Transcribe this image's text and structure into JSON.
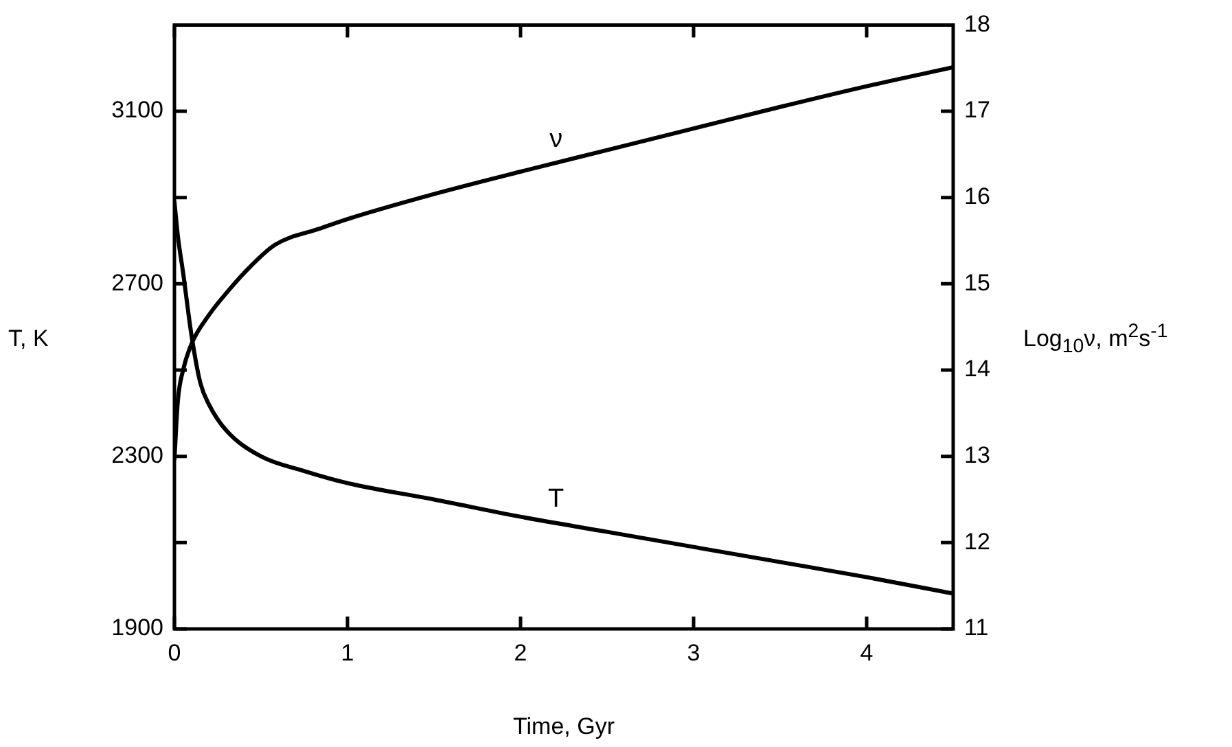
{
  "chart_data": {
    "type": "line",
    "xlabel": "Time, Gyr",
    "ylabel": "T, K",
    "y2label": "Log$_{10}$ν, m$^{2}$s$^{-1}$",
    "xlim": [
      0,
      4.5
    ],
    "xticks": [
      0,
      1,
      2,
      3,
      4
    ],
    "ylim": [
      1900,
      3300
    ],
    "yticks": [
      1900,
      {
        "value": 2100,
        "label": null
      },
      2300,
      {
        "value": 2500,
        "label": null
      },
      2700,
      {
        "value": 2900,
        "label": null
      },
      3100
    ],
    "y2lim": [
      11,
      18
    ],
    "y2ticks": [
      11,
      12,
      13,
      14,
      15,
      16,
      17,
      18
    ],
    "marker": "none",
    "line_style": "solid",
    "legend": false,
    "series": [
      {
        "name": "T",
        "color": "#000000",
        "x": [
          0,
          0.02,
          0.05,
          0.1,
          0.15,
          0.2,
          0.3,
          0.5,
          0.75,
          1,
          1.5,
          2,
          2.5,
          3,
          3.5,
          4,
          4.5
        ],
        "values": [
          2890,
          2810,
          2726,
          2577,
          2470,
          2420,
          2360,
          2300,
          2266,
          2238,
          2200,
          2160,
          2125,
          2090,
          2055,
          2020,
          1982
        ]
      },
      {
        "name": "ν",
        "color": "#000000",
        "axis": "y2",
        "x": [
          0,
          0.02,
          0.05,
          0.1,
          0.2,
          0.32,
          0.4,
          0.58,
          0.84,
          1,
          1.5,
          2,
          2.5,
          3,
          3.5,
          4,
          4.5
        ],
        "values": [
          12.97,
          13.65,
          14.0,
          14.31,
          14.64,
          14.94,
          15.12,
          15.45,
          15.64,
          15.75,
          16.04,
          16.3,
          16.55,
          16.8,
          17.05,
          17.29,
          17.51
        ]
      }
    ]
  }
}
